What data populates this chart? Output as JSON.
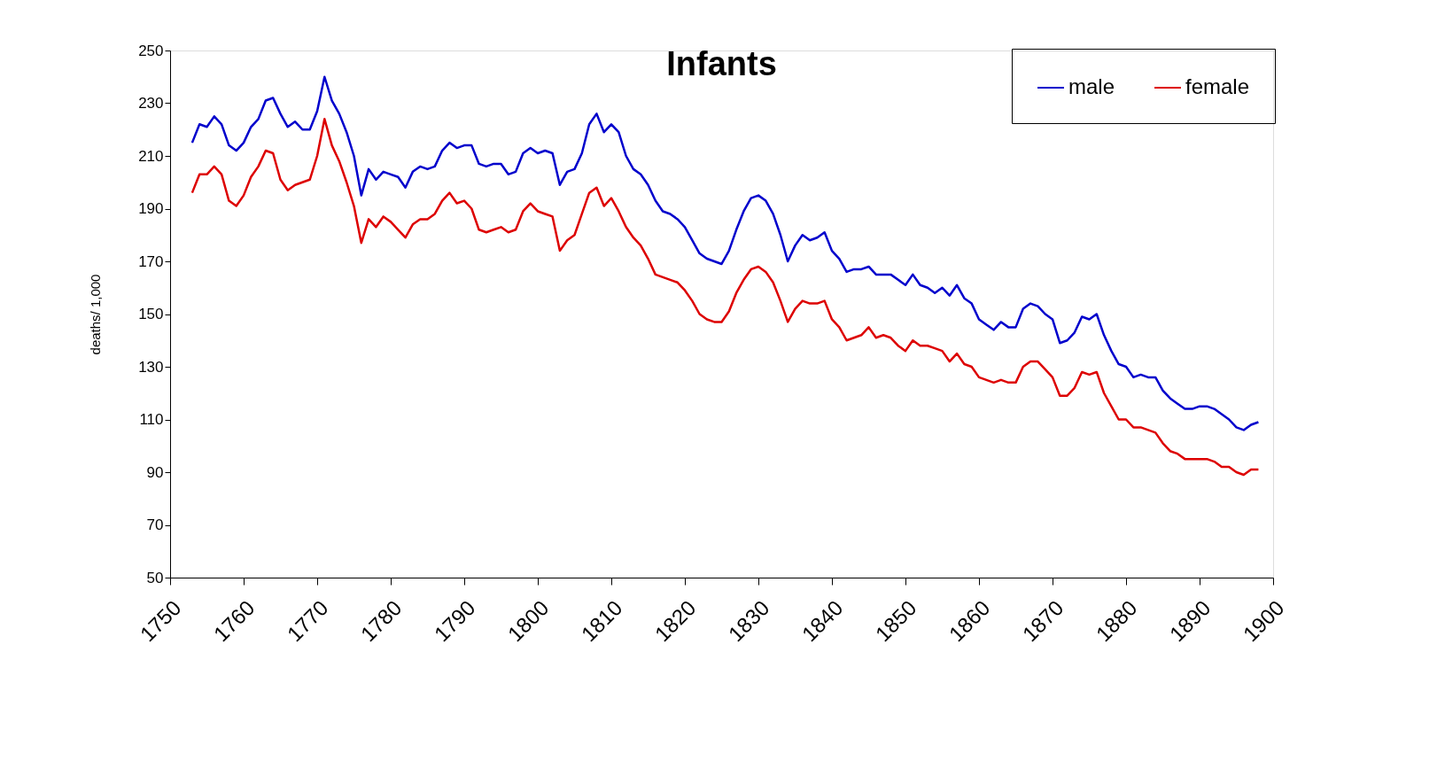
{
  "chart_data": {
    "type": "line",
    "title": "Infants",
    "ylabel": "deaths/ 1,000",
    "x": [
      1753,
      1754,
      1755,
      1756,
      1757,
      1758,
      1759,
      1760,
      1761,
      1762,
      1763,
      1764,
      1765,
      1766,
      1767,
      1768,
      1769,
      1770,
      1771,
      1772,
      1773,
      1774,
      1775,
      1776,
      1777,
      1778,
      1779,
      1780,
      1781,
      1782,
      1783,
      1784,
      1785,
      1786,
      1787,
      1788,
      1789,
      1790,
      1791,
      1792,
      1793,
      1794,
      1795,
      1796,
      1797,
      1798,
      1799,
      1800,
      1801,
      1802,
      1803,
      1804,
      1805,
      1806,
      1807,
      1808,
      1809,
      1810,
      1811,
      1812,
      1813,
      1814,
      1815,
      1816,
      1817,
      1818,
      1819,
      1820,
      1821,
      1822,
      1823,
      1824,
      1825,
      1826,
      1827,
      1828,
      1829,
      1830,
      1831,
      1832,
      1833,
      1834,
      1835,
      1836,
      1837,
      1838,
      1839,
      1840,
      1841,
      1842,
      1843,
      1844,
      1845,
      1846,
      1847,
      1848,
      1849,
      1850,
      1851,
      1852,
      1853,
      1854,
      1855,
      1856,
      1857,
      1858,
      1859,
      1860,
      1861,
      1862,
      1863,
      1864,
      1865,
      1866,
      1867,
      1868,
      1869,
      1870,
      1871,
      1872,
      1873,
      1874,
      1875,
      1876,
      1877,
      1878,
      1879,
      1880,
      1881,
      1882,
      1883,
      1884,
      1885,
      1886,
      1887,
      1888,
      1889,
      1890,
      1891,
      1892,
      1893,
      1894,
      1895,
      1896,
      1897,
      1898
    ],
    "series": [
      {
        "name": "male",
        "color": "#0000cc",
        "values": [
          215,
          222,
          221,
          225,
          222,
          214,
          212,
          215,
          221,
          224,
          231,
          232,
          226,
          221,
          223,
          220,
          220,
          227,
          240,
          231,
          226,
          219,
          210,
          195,
          205,
          201,
          204,
          203,
          202,
          198,
          204,
          206,
          205,
          206,
          212,
          215,
          213,
          214,
          214,
          207,
          206,
          207,
          207,
          203,
          204,
          211,
          213,
          211,
          212,
          211,
          199,
          204,
          205,
          211,
          222,
          226,
          219,
          222,
          219,
          210,
          205,
          203,
          199,
          193,
          189,
          188,
          186,
          183,
          178,
          173,
          171,
          170,
          169,
          174,
          182,
          189,
          194,
          195,
          193,
          188,
          180,
          170,
          176,
          180,
          178,
          179,
          181,
          174,
          171,
          166,
          167,
          167,
          168,
          165,
          165,
          165,
          163,
          161,
          165,
          161,
          160,
          158,
          160,
          157,
          161,
          156,
          154,
          148,
          146,
          144,
          147,
          145,
          145,
          152,
          154,
          153,
          150,
          148,
          139,
          140,
          143,
          149,
          148,
          150,
          142,
          136,
          131,
          130,
          126,
          127,
          126,
          126,
          121,
          118,
          116,
          114,
          114,
          115,
          115,
          114,
          112,
          110,
          107,
          106,
          108,
          109
        ]
      },
      {
        "name": "female",
        "color": "#dd0000",
        "values": [
          196,
          203,
          203,
          206,
          203,
          193,
          191,
          195,
          202,
          206,
          212,
          211,
          201,
          197,
          199,
          200,
          201,
          210,
          224,
          214,
          208,
          200,
          191,
          177,
          186,
          183,
          187,
          185,
          182,
          179,
          184,
          186,
          186,
          188,
          193,
          196,
          192,
          193,
          190,
          182,
          181,
          182,
          183,
          181,
          182,
          189,
          192,
          189,
          188,
          187,
          174,
          178,
          180,
          188,
          196,
          198,
          191,
          194,
          189,
          183,
          179,
          176,
          171,
          165,
          164,
          163,
          162,
          159,
          155,
          150,
          148,
          147,
          147,
          151,
          158,
          163,
          167,
          168,
          166,
          162,
          155,
          147,
          152,
          155,
          154,
          154,
          155,
          148,
          145,
          140,
          141,
          142,
          145,
          141,
          142,
          141,
          138,
          136,
          140,
          138,
          138,
          137,
          136,
          132,
          135,
          131,
          130,
          126,
          125,
          124,
          125,
          124,
          124,
          130,
          132,
          132,
          129,
          126,
          119,
          119,
          122,
          128,
          127,
          128,
          120,
          115,
          110,
          110,
          107,
          107,
          106,
          105,
          101,
          98,
          97,
          95,
          95,
          95,
          95,
          94,
          92,
          92,
          90,
          89,
          91,
          91
        ]
      }
    ],
    "xlim": [
      1750,
      1900
    ],
    "xticks": [
      1750,
      1760,
      1770,
      1780,
      1790,
      1800,
      1810,
      1820,
      1830,
      1840,
      1850,
      1860,
      1870,
      1880,
      1890,
      1900
    ],
    "ylim": [
      50,
      250
    ],
    "yticks": [
      50,
      70,
      90,
      110,
      130,
      150,
      170,
      190,
      210,
      230,
      250
    ],
    "grid": false,
    "legend": "top right",
    "marker": "none",
    "line_style": "solid"
  }
}
